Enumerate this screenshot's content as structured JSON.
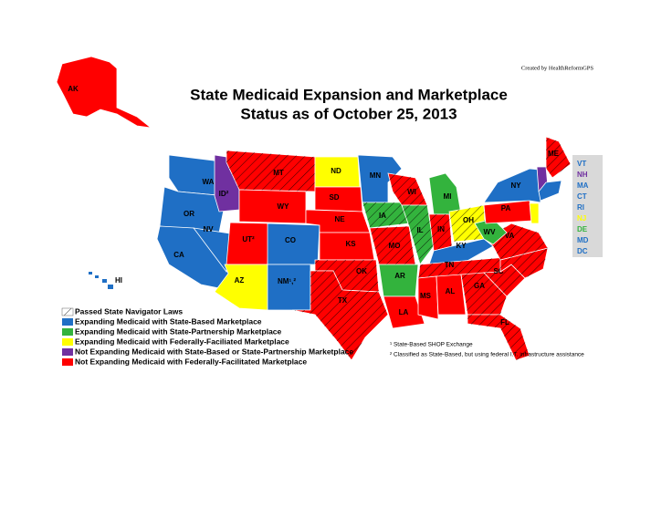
{
  "credit": "Created by HealthReformGPS",
  "title": [
    "State Medicaid Expansion and Marketplace",
    "Status as of October 25, 2013"
  ],
  "legend": [
    {
      "label": "Passed State Navigator Laws",
      "hatched": true
    },
    {
      "label": "Expanding Medicaid with State-Based Marketplace",
      "color": "#1f6fc5"
    },
    {
      "label": "Expanding Medicaid with State-Partnership Marketplace",
      "color": "#33b33d"
    },
    {
      "label": "Expanding Medicaid with Federally-Faciliated Marketplace",
      "color": "#ffff00"
    },
    {
      "label": "Not Expanding Medicaid with State-Based or State-Partnership Marketplace",
      "color": "#7030a0"
    },
    {
      "label": "Not Expanding Medicaid with Federally-Facilitated Marketplace",
      "color": "#ff0000"
    }
  ],
  "footnotes": [
    "¹ State-Based SHOP Exchange",
    "² Classified as State-Based, but using federal I.T. infrastructure assistance"
  ],
  "states": [
    {
      "label": "AK",
      "color": "#ff0000",
      "hatched": false
    },
    {
      "label": "HI",
      "color": "#1f6fc5",
      "hatched": false
    },
    {
      "label": "WA",
      "color": "#1f6fc5",
      "hatched": false
    },
    {
      "label": "OR",
      "color": "#1f6fc5",
      "hatched": false
    },
    {
      "label": "CA",
      "color": "#1f6fc5",
      "hatched": false
    },
    {
      "label": "NV",
      "color": "#1f6fc5",
      "hatched": false
    },
    {
      "label": "ID²",
      "color": "#7030a0",
      "hatched": false
    },
    {
      "label": "MT",
      "color": "#ff0000",
      "hatched": true
    },
    {
      "label": "WY",
      "color": "#ff0000",
      "hatched": false
    },
    {
      "label": "UT²",
      "color": "#ff0000",
      "hatched": false
    },
    {
      "label": "CO",
      "color": "#1f6fc5",
      "hatched": false
    },
    {
      "label": "AZ",
      "color": "#ffff00",
      "hatched": false
    },
    {
      "label": "NM¹,²",
      "color": "#1f6fc5",
      "hatched": false
    },
    {
      "label": "ND",
      "color": "#ffff00",
      "hatched": false
    },
    {
      "label": "SD",
      "color": "#ff0000",
      "hatched": false
    },
    {
      "label": "NE",
      "color": "#ff0000",
      "hatched": false
    },
    {
      "label": "KS",
      "color": "#ff0000",
      "hatched": false
    },
    {
      "label": "OK",
      "color": "#ff0000",
      "hatched": true
    },
    {
      "label": "TX",
      "color": "#ff0000",
      "hatched": true
    },
    {
      "label": "MN",
      "color": "#1f6fc5",
      "hatched": false
    },
    {
      "label": "IA",
      "color": "#33b33d",
      "hatched": true
    },
    {
      "label": "MO",
      "color": "#ff0000",
      "hatched": true
    },
    {
      "label": "AR",
      "color": "#33b33d",
      "hatched": false
    },
    {
      "label": "LA",
      "color": "#ff0000",
      "hatched": false
    },
    {
      "label": "WI",
      "color": "#ff0000",
      "hatched": true
    },
    {
      "label": "IL",
      "color": "#33b33d",
      "hatched": true
    },
    {
      "label": "MI",
      "color": "#33b33d",
      "hatched": false
    },
    {
      "label": "IN",
      "color": "#ff0000",
      "hatched": true
    },
    {
      "label": "OH",
      "color": "#ffff00",
      "hatched": true
    },
    {
      "label": "KY",
      "color": "#1f6fc5",
      "hatched": false
    },
    {
      "label": "TN",
      "color": "#ff0000",
      "hatched": true
    },
    {
      "label": "MS",
      "color": "#ff0000",
      "hatched": false
    },
    {
      "label": "AL",
      "color": "#ff0000",
      "hatched": false
    },
    {
      "label": "GA",
      "color": "#ff0000",
      "hatched": true
    },
    {
      "label": "FL",
      "color": "#ff0000",
      "hatched": true
    },
    {
      "label": "SC",
      "color": "#ff0000",
      "hatched": true
    },
    {
      "label": "NC",
      "color": "#ff0000",
      "hatched": true
    },
    {
      "label": "VA",
      "color": "#ff0000",
      "hatched": true
    },
    {
      "label": "WV",
      "color": "#33b33d",
      "hatched": false
    },
    {
      "label": "PA",
      "color": "#ff0000",
      "hatched": false
    },
    {
      "label": "NY",
      "color": "#1f6fc5",
      "hatched": false
    },
    {
      "label": "NJ",
      "color": "#ffff00",
      "hatched": false
    },
    {
      "label": "ME",
      "color": "#ff0000",
      "hatched": true
    }
  ],
  "small_states": [
    {
      "label": "VT",
      "color": "#1f6fc5"
    },
    {
      "label": "NH",
      "color": "#7030a0"
    },
    {
      "label": "MA",
      "color": "#1f6fc5"
    },
    {
      "label": "CT",
      "color": "#1f6fc5"
    },
    {
      "label": "RI",
      "color": "#1f6fc5"
    },
    {
      "label": "NJ",
      "color": "#ffff00"
    },
    {
      "label": "DE",
      "color": "#33b33d"
    },
    {
      "label": "MD",
      "color": "#1f6fc5"
    },
    {
      "label": "DC",
      "color": "#1f6fc5"
    }
  ]
}
